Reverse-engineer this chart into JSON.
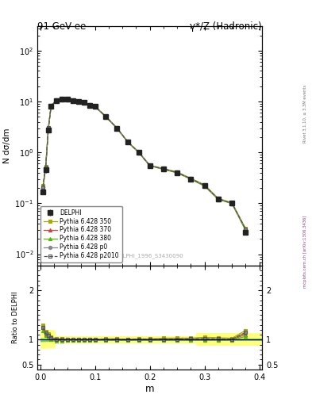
{
  "title_left": "91 GeV ee",
  "title_right": "γ*/Z (Hadronic)",
  "xlabel": "m",
  "ylabel_top": "N dσ/dm",
  "ylabel_bottom": "Ratio to DELPHI",
  "watermark": "DELPHI_1996_S3430090",
  "right_label_top": "Rivet 3.1.10, ≥ 3.3M events",
  "right_label_bot": "mcplots.cern.ch [arXiv:1306.3436]",
  "x": [
    0.005,
    0.01,
    0.015,
    0.02,
    0.03,
    0.04,
    0.05,
    0.06,
    0.07,
    0.08,
    0.09,
    0.1,
    0.12,
    0.14,
    0.16,
    0.18,
    0.2,
    0.225,
    0.25,
    0.275,
    0.3,
    0.325,
    0.35,
    0.375
  ],
  "delphi_y": [
    0.17,
    0.45,
    2.8,
    8.0,
    10.5,
    11.0,
    11.0,
    10.5,
    10.0,
    9.5,
    8.5,
    8.0,
    5.0,
    3.0,
    1.6,
    1.0,
    0.55,
    0.47,
    0.4,
    0.3,
    0.22,
    0.12,
    0.1,
    0.027
  ],
  "delphi_yerr": [
    0.02,
    0.05,
    0.3,
    0.5,
    0.6,
    0.6,
    0.6,
    0.5,
    0.5,
    0.5,
    0.4,
    0.4,
    0.25,
    0.15,
    0.1,
    0.07,
    0.04,
    0.03,
    0.03,
    0.02,
    0.015,
    0.01,
    0.008,
    0.003
  ],
  "pythia350_y": [
    0.22,
    0.52,
    3.1,
    8.4,
    10.7,
    11.2,
    11.1,
    10.6,
    10.1,
    9.6,
    8.6,
    8.1,
    5.1,
    3.05,
    1.62,
    1.02,
    0.56,
    0.485,
    0.413,
    0.31,
    0.231,
    0.125,
    0.103,
    0.032
  ],
  "pythia370_y": [
    0.21,
    0.5,
    3.0,
    8.2,
    10.5,
    11.0,
    11.0,
    10.5,
    10.0,
    9.5,
    8.5,
    8.0,
    5.0,
    3.0,
    1.6,
    1.0,
    0.55,
    0.47,
    0.4,
    0.3,
    0.22,
    0.12,
    0.1,
    0.03
  ],
  "pythia380_y": [
    0.2,
    0.49,
    2.95,
    8.1,
    10.3,
    10.8,
    10.9,
    10.4,
    9.9,
    9.4,
    8.4,
    7.9,
    4.95,
    2.97,
    1.58,
    0.99,
    0.545,
    0.465,
    0.396,
    0.297,
    0.218,
    0.119,
    0.099,
    0.029
  ],
  "pythiap0_y": [
    0.21,
    0.51,
    3.05,
    8.3,
    10.6,
    11.1,
    11.0,
    10.55,
    10.05,
    9.55,
    8.55,
    8.05,
    5.05,
    3.02,
    1.61,
    1.01,
    0.555,
    0.475,
    0.405,
    0.305,
    0.225,
    0.122,
    0.101,
    0.031
  ],
  "pythiap2010_y": [
    0.21,
    0.51,
    3.05,
    8.3,
    10.6,
    11.1,
    11.0,
    10.55,
    10.05,
    9.55,
    8.55,
    8.05,
    5.05,
    3.02,
    1.61,
    1.01,
    0.555,
    0.475,
    0.405,
    0.305,
    0.225,
    0.122,
    0.101,
    0.031
  ],
  "ratio350": [
    1.3,
    1.17,
    1.12,
    1.05,
    1.02,
    1.02,
    1.01,
    1.01,
    1.01,
    1.01,
    1.01,
    1.01,
    1.02,
    1.02,
    1.013,
    1.02,
    1.018,
    1.032,
    1.033,
    1.033,
    1.05,
    1.042,
    1.03,
    1.19
  ],
  "ratio370": [
    1.24,
    1.11,
    1.07,
    1.025,
    1.0,
    1.0,
    1.0,
    1.0,
    1.0,
    1.0,
    1.0,
    1.0,
    1.0,
    1.0,
    1.0,
    1.0,
    1.0,
    1.0,
    1.0,
    1.0,
    1.0,
    1.0,
    1.0,
    1.11
  ],
  "ratio380": [
    1.18,
    1.09,
    1.054,
    1.013,
    0.981,
    0.982,
    0.99,
    0.99,
    0.99,
    0.989,
    0.988,
    0.988,
    0.99,
    0.99,
    0.988,
    0.99,
    0.991,
    0.989,
    0.99,
    0.99,
    0.991,
    0.992,
    0.99,
    1.07
  ],
  "ratiop0": [
    1.24,
    1.13,
    1.09,
    1.038,
    1.01,
    1.009,
    1.0,
    1.005,
    1.005,
    1.005,
    1.006,
    1.006,
    1.01,
    1.007,
    1.006,
    1.01,
    1.009,
    1.011,
    1.013,
    1.017,
    1.023,
    1.017,
    1.01,
    1.148
  ],
  "ratiop2010": [
    1.24,
    1.13,
    1.09,
    1.038,
    1.01,
    1.009,
    1.0,
    1.005,
    1.005,
    1.005,
    1.006,
    1.006,
    1.01,
    1.007,
    1.006,
    1.01,
    1.009,
    1.011,
    1.013,
    1.017,
    1.023,
    1.017,
    1.01,
    1.148
  ],
  "color_delphi": "#222222",
  "color_350": "#aaaa00",
  "color_370": "#cc4444",
  "color_380": "#55bb00",
  "color_p0": "#888888",
  "color_p2010": "#555555",
  "color_yellow_band": "#ffff44",
  "color_green_band": "#44cc44",
  "bg_color": "#ffffff"
}
